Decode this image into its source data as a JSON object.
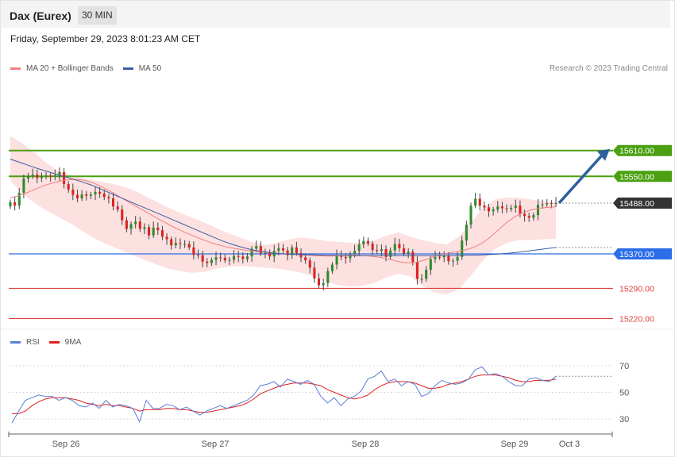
{
  "header": {
    "title": "Dax (Eurex)",
    "timeframe": "30 MIN"
  },
  "timestamp": "Friday, September 29, 2023 8:01:23 AM CET",
  "legend": {
    "main": [
      {
        "label": "MA 20 + Bollinger Bands",
        "color": "#f08080"
      },
      {
        "label": "MA 50",
        "color": "#3a5fa0"
      }
    ],
    "rsi": [
      {
        "label": "RSI",
        "color": "#5b7fd6"
      },
      {
        "label": "9MA",
        "color": "#e02020"
      }
    ]
  },
  "credit": "Research © 2023 Trading Central",
  "chart_data": [
    {
      "type": "candlestick",
      "x_labels": [
        "Sep 26",
        "Sep 27",
        "Sep 28",
        "Sep 29",
        "Oct 3"
      ],
      "ylim": [
        15195,
        15790
      ],
      "levels": [
        {
          "label": "15610.00",
          "value": 15610,
          "role": "resistance",
          "color": "#4aa010"
        },
        {
          "label": "15550.00",
          "value": 15550,
          "role": "resistance",
          "color": "#4aa010"
        },
        {
          "label": "15488.00",
          "value": 15488,
          "role": "last price",
          "color": "#333333"
        },
        {
          "label": "15370.00",
          "value": 15370,
          "role": "pivot",
          "color": "#2d6ee8"
        },
        {
          "label": "15290.00",
          "value": 15290,
          "role": "support",
          "color": "#e04040"
        },
        {
          "label": "15220.00",
          "value": 15220,
          "role": "support",
          "color": "#e04040"
        }
      ],
      "forecast": {
        "from": 15488,
        "to": 15610
      },
      "candles_close": [
        15490,
        15482,
        15512,
        15545,
        15551,
        15554,
        15546,
        15549,
        15552,
        15549,
        15553,
        15560,
        15532,
        15519,
        15507,
        15499,
        15508,
        15505,
        15508,
        15514,
        15510,
        15502,
        15499,
        15480,
        15473,
        15448,
        15428,
        15439,
        15445,
        15428,
        15432,
        15413,
        15431,
        15425,
        15410,
        15404,
        15390,
        15395,
        15393,
        15393,
        15385,
        15368,
        15367,
        15352,
        15349,
        15356,
        15362,
        15361,
        15355,
        15356,
        15365,
        15364,
        15358,
        15364,
        15382,
        15388,
        15371,
        15373,
        15364,
        15377,
        15383,
        15378,
        15367,
        15385,
        15372,
        15362,
        15355,
        15338,
        15313,
        15297,
        15302,
        15330,
        15345,
        15367,
        15363,
        15360,
        15369,
        15377,
        15392,
        15400,
        15394,
        15379,
        15377,
        15381,
        15363,
        15378,
        15393,
        15383,
        15371,
        15375,
        15351,
        15312,
        15312,
        15333,
        15358,
        15363,
        15362,
        15366,
        15353,
        15354,
        15363,
        15401,
        15438,
        15482,
        15498,
        15482,
        15478,
        15469,
        15473,
        15480,
        15476,
        15474,
        15477,
        15482,
        15463,
        15458,
        15454,
        15460,
        15484,
        15485,
        15488,
        15487,
        15488
      ],
      "ma20": [
        15500,
        15505,
        15512,
        15520,
        15528,
        15534,
        15539,
        15542,
        15543,
        15541,
        15535,
        15526,
        15516,
        15505,
        15494,
        15483,
        15472,
        15461,
        15450,
        15440,
        15430,
        15421,
        15413,
        15405,
        15398,
        15392,
        15387,
        15383,
        15380,
        15377,
        15375,
        15373,
        15372,
        15370,
        15369,
        15368,
        15367,
        15366,
        15365,
        15365,
        15366,
        15367,
        15367,
        15366,
        15364,
        15361,
        15357,
        15352,
        15349,
        15350,
        15355,
        15362,
        15368,
        15372,
        15375,
        15379,
        15385,
        15394,
        15408,
        15425,
        15442,
        15456,
        15466,
        15472,
        15476,
        15478,
        15479
      ],
      "ma50": [
        15590,
        15582,
        15574,
        15566,
        15559,
        15552,
        15545,
        15538,
        15530,
        15520,
        15510,
        15500,
        15490,
        15480,
        15470,
        15460,
        15450,
        15440,
        15430,
        15420,
        15410,
        15400,
        15392,
        15385,
        15379,
        15375,
        15372,
        15370,
        15369,
        15368,
        15368,
        15367,
        15367,
        15366,
        15366,
        15366,
        15366,
        15366,
        15366,
        15366,
        15366,
        15366,
        15366,
        15366,
        15366,
        15367,
        15367,
        15368,
        15369,
        15371,
        15373,
        15376,
        15379,
        15382,
        15385
      ],
      "bollinger_upper": [
        15644,
        15626,
        15605,
        15580,
        15562,
        15552,
        15546,
        15540,
        15535,
        15529,
        15520,
        15506,
        15492,
        15478,
        15465,
        15454,
        15443,
        15430,
        15418,
        15407,
        15397,
        15390,
        15396,
        15404,
        15408,
        15405,
        15400,
        15398,
        15396,
        15396,
        15401,
        15412,
        15420,
        15410,
        15402,
        15396,
        15392,
        15410,
        15442,
        15478,
        15497,
        15501,
        15500,
        15496,
        15492,
        15490
      ],
      "bollinger_lower": [
        15540,
        15510,
        15488,
        15470,
        15455,
        15440,
        15422,
        15405,
        15392,
        15380,
        15368,
        15357,
        15346,
        15336,
        15330,
        15326,
        15328,
        15336,
        15340,
        15342,
        15340,
        15338,
        15336,
        15332,
        15326,
        15318,
        15306,
        15298,
        15294,
        15296,
        15302,
        15315,
        15324,
        15318,
        15296,
        15280,
        15276,
        15288,
        15320,
        15356,
        15382,
        15396,
        15402,
        15402,
        15404,
        15405
      ]
    },
    {
      "type": "line",
      "title": "RSI",
      "y_ticks": [
        70,
        50,
        30
      ],
      "ylim": [
        20,
        80
      ],
      "series": [
        {
          "name": "RSI",
          "values": [
            27,
            36,
            44,
            46,
            48,
            47,
            47,
            44,
            46,
            44,
            40,
            39,
            42,
            38,
            44,
            39,
            41,
            40,
            38,
            28,
            44,
            38,
            38,
            41,
            40,
            37,
            39,
            36,
            33,
            36,
            38,
            40,
            38,
            40,
            42,
            44,
            48,
            55,
            56,
            58,
            54,
            60,
            58,
            56,
            59,
            56,
            47,
            42,
            46,
            40,
            45,
            47,
            51,
            60,
            62,
            66,
            58,
            60,
            55,
            58,
            56,
            47,
            49,
            55,
            59,
            57,
            56,
            57,
            60,
            67,
            69,
            63,
            64,
            62,
            58,
            55,
            55,
            60,
            61,
            59,
            58,
            62
          ]
        },
        {
          "name": "9MA",
          "values": [
            34,
            34,
            36,
            40,
            43,
            45,
            46,
            46,
            46,
            45,
            44,
            42,
            41,
            40,
            41,
            40,
            40,
            39,
            38,
            36,
            37,
            37,
            37,
            38,
            38,
            37,
            37,
            36,
            35,
            35,
            36,
            37,
            38,
            39,
            40,
            42,
            45,
            49,
            51,
            53,
            55,
            56,
            57,
            57,
            57,
            56,
            55,
            52,
            50,
            48,
            46,
            45,
            46,
            48,
            52,
            55,
            57,
            58,
            58,
            58,
            57,
            55,
            53,
            53,
            54,
            56,
            57,
            58,
            60,
            62,
            63,
            63,
            63,
            62,
            61,
            59,
            58,
            58,
            59,
            59,
            59,
            60
          ]
        }
      ]
    }
  ]
}
